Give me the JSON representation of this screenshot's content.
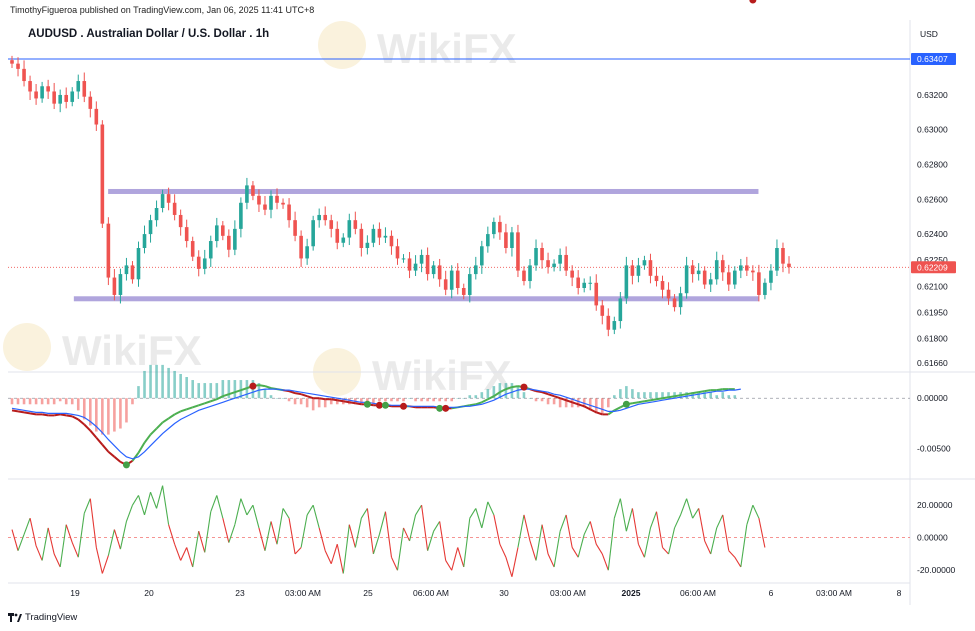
{
  "published": "TimothyFigueroa published on TradingView.com, Jan 06, 2025 11:41 UTC+8",
  "title": "AUDUSD . Australian Dollar / U.S. Dollar . 1h",
  "currency": "USD",
  "footer": {
    "brand": "TradingView",
    "logo_icon": "tradingview-logo-icon"
  },
  "watermark": "WikiFX",
  "colors": {
    "up": "#26a69a",
    "down": "#ef5350",
    "zone": "#a79bd9",
    "axis_text": "#131722",
    "hline": "#2962ff"
  },
  "chart_data": [
    {
      "type": "candlestick",
      "name": "price",
      "y_ticks": [
        0.632,
        0.63,
        0.628,
        0.626,
        0.624,
        0.6225,
        0.621,
        0.6195,
        0.618,
        0.6166
      ],
      "y_tick_labels": [
        "0.63200",
        "0.63000",
        "0.62800",
        "0.62600",
        "0.62400",
        "0.62250",
        "0.62100",
        "0.61950",
        "0.61800",
        "0.61660"
      ],
      "ylim": [
        0.6163,
        0.6347
      ],
      "horizontal_line": {
        "value": 0.63407,
        "label": "0.63407"
      },
      "last_price": {
        "value": 0.62209,
        "label": "0.62209"
      },
      "zones": [
        {
          "value": 0.62645,
          "x_start": 0.111,
          "x_end": 0.832
        },
        {
          "value": 0.62028,
          "x_start": 0.073,
          "x_end": 0.832
        }
      ],
      "x_ticks": [
        "19",
        "20",
        "23",
        "03:00 AM",
        "25",
        "06:00 AM",
        "30",
        "03:00 AM",
        "2025",
        "06:00 AM",
        "6",
        "03:00 AM",
        "8"
      ],
      "closes": [
        0.6338,
        0.6335,
        0.6328,
        0.6322,
        0.6318,
        0.6325,
        0.6322,
        0.6315,
        0.632,
        0.6316,
        0.6322,
        0.6328,
        0.6319,
        0.6312,
        0.6303,
        0.6246,
        0.6215,
        0.6205,
        0.6217,
        0.6222,
        0.6214,
        0.6232,
        0.624,
        0.6248,
        0.6255,
        0.6263,
        0.6258,
        0.6251,
        0.6244,
        0.6236,
        0.6227,
        0.622,
        0.6226,
        0.6236,
        0.6245,
        0.6239,
        0.6231,
        0.6243,
        0.6258,
        0.6268,
        0.6262,
        0.6257,
        0.6254,
        0.6262,
        0.6258,
        0.6257,
        0.6248,
        0.6239,
        0.6226,
        0.6233,
        0.6248,
        0.6251,
        0.6248,
        0.6243,
        0.6235,
        0.6238,
        0.6248,
        0.6243,
        0.6232,
        0.6235,
        0.6243,
        0.6238,
        0.6239,
        0.6233,
        0.6226,
        0.6226,
        0.6219,
        0.6223,
        0.6228,
        0.6217,
        0.6222,
        0.6214,
        0.6208,
        0.6219,
        0.6209,
        0.6205,
        0.6217,
        0.6222,
        0.6233,
        0.624,
        0.6247,
        0.6241,
        0.6232,
        0.6241,
        0.6219,
        0.6213,
        0.6222,
        0.6232,
        0.6225,
        0.6221,
        0.6223,
        0.6228,
        0.6219,
        0.6215,
        0.6209,
        0.6212,
        0.6212,
        0.6199,
        0.6193,
        0.6185,
        0.619,
        0.6203,
        0.6222,
        0.6216,
        0.6222,
        0.6225,
        0.6216,
        0.6213,
        0.6208,
        0.6203,
        0.6198,
        0.6206,
        0.6222,
        0.6217,
        0.6219,
        0.6211,
        0.6214,
        0.6225,
        0.6218,
        0.6211,
        0.6219,
        0.6222,
        0.6219,
        0.6218,
        0.6205,
        0.6212,
        0.6219,
        0.6232,
        0.6223,
        0.6221
      ]
    },
    {
      "type": "macd",
      "name": "macd",
      "y_ticks": [
        0.0,
        -0.005
      ],
      "y_tick_labels": [
        "0.00000",
        "-0.00500"
      ],
      "ylim": [
        -0.0077,
        0.0022
      ],
      "macd": [
        -0.0012,
        -0.0013,
        -0.0014,
        -0.0015,
        -0.0016,
        -0.0016,
        -0.0017,
        -0.0017,
        -0.0016,
        -0.0017,
        -0.0018,
        -0.0021,
        -0.0026,
        -0.0032,
        -0.0039,
        -0.0046,
        -0.0053,
        -0.0058,
        -0.0063,
        -0.0066,
        -0.0062,
        -0.0054,
        -0.0044,
        -0.0036,
        -0.003,
        -0.0024,
        -0.002,
        -0.0016,
        -0.0013,
        -0.0011,
        -0.0009,
        -0.0007,
        -0.0005,
        -0.0003,
        -0.0001,
        0.0002,
        0.0004,
        0.0006,
        0.0008,
        0.001,
        0.0012,
        0.0013,
        0.0012,
        0.001,
        0.0009,
        0.0008,
        0.0007,
        0.0005,
        0.0004,
        0.0002,
        0.0,
        0.0,
        -0.0001,
        -0.0001,
        -0.0002,
        -0.0003,
        -0.0004,
        -0.0005,
        -0.0006,
        -0.0006,
        -0.0007,
        -0.0007,
        -0.0007,
        -0.0008,
        -0.0008,
        -0.0008,
        -0.0008,
        -0.0009,
        -0.0009,
        -0.0009,
        -0.0009,
        -0.001,
        -0.001,
        -0.001,
        -0.0009,
        -0.0008,
        -0.0007,
        -0.0006,
        -0.0004,
        -0.0001,
        0.0002,
        0.0006,
        0.0009,
        0.0011,
        0.0012,
        0.0011,
        0.0009,
        0.0007,
        0.0006,
        0.0004,
        0.0002,
        0.0,
        -0.0002,
        -0.0004,
        -0.0006,
        -0.0008,
        -0.0011,
        -0.0014,
        -0.0016,
        -0.0016,
        -0.0012,
        -0.0009,
        -0.0006,
        -0.0005,
        -0.0004,
        -0.0003,
        -0.0002,
        -0.0001,
        0.0,
        0.0001,
        0.0002,
        0.0003,
        0.0004,
        0.0005,
        0.0006,
        0.0007,
        0.0008,
        0.0008,
        0.0009,
        0.0009,
        0.0009
      ],
      "signal": [
        -0.001,
        -0.0011,
        -0.0012,
        -0.0013,
        -0.0014,
        -0.0014,
        -0.0015,
        -0.0015,
        -0.0015,
        -0.0015,
        -0.0016,
        -0.0017,
        -0.0019,
        -0.0023,
        -0.0028,
        -0.0034,
        -0.0041,
        -0.0047,
        -0.0053,
        -0.0058,
        -0.006,
        -0.0058,
        -0.0053,
        -0.0047,
        -0.0041,
        -0.0035,
        -0.003,
        -0.0025,
        -0.0021,
        -0.0018,
        -0.0015,
        -0.0012,
        -0.001,
        -0.0008,
        -0.0006,
        -0.0004,
        -0.0002,
        0.0,
        0.0002,
        0.0004,
        0.0006,
        0.0008,
        0.0009,
        0.0009,
        0.0009,
        0.0008,
        0.0008,
        0.0007,
        0.0006,
        0.0005,
        0.0004,
        0.0003,
        0.0002,
        0.0001,
        0.0,
        -0.0001,
        -0.0002,
        -0.0003,
        -0.0004,
        -0.0004,
        -0.0005,
        -0.0006,
        -0.0006,
        -0.0007,
        -0.0007,
        -0.0007,
        -0.0008,
        -0.0008,
        -0.0008,
        -0.0008,
        -0.0008,
        -0.0009,
        -0.0009,
        -0.0009,
        -0.0009,
        -0.0008,
        -0.0008,
        -0.0007,
        -0.0006,
        -0.0004,
        -0.0002,
        0.0001,
        0.0004,
        0.0006,
        0.0008,
        0.0009,
        0.0009,
        0.0008,
        0.0007,
        0.0006,
        0.0004,
        0.0003,
        0.0001,
        -0.0001,
        -0.0003,
        -0.0005,
        -0.0007,
        -0.0009,
        -0.0011,
        -0.0013,
        -0.0013,
        -0.0012,
        -0.001,
        -0.0008,
        -0.0006,
        -0.0005,
        -0.0004,
        -0.0003,
        -0.0002,
        -0.0001,
        0.0,
        0.0001,
        0.0002,
        0.0003,
        0.0004,
        0.0005,
        0.0006,
        0.0007,
        0.0007,
        0.0008,
        0.0008,
        0.0009
      ],
      "cross_points": [
        {
          "index": 19,
          "color": "#43a047"
        },
        {
          "index": 40,
          "color": "#b71c1c"
        },
        {
          "index": 59,
          "color": "#43a047"
        },
        {
          "index": 61,
          "color": "#b71c1c"
        },
        {
          "index": 62,
          "color": "#43a047"
        },
        {
          "index": 65,
          "color": "#b71c1c"
        },
        {
          "index": 71,
          "color": "#43a047"
        },
        {
          "index": 72,
          "color": "#b71c1c"
        },
        {
          "index": 85,
          "color": "#b71c1c"
        },
        {
          "index": 102,
          "color": "#43a047"
        },
        {
          "index": 123,
          "color": "#b71c1c"
        }
      ]
    },
    {
      "type": "line",
      "name": "oscillator",
      "y_ticks": [
        20,
        0,
        -20
      ],
      "y_tick_labels": [
        "20.00000",
        "0.00000",
        "-20.00000"
      ],
      "ylim": [
        -26,
        33
      ],
      "values": [
        5,
        -8,
        2,
        12,
        -5,
        -14,
        6,
        -10,
        -18,
        8,
        -3,
        -12,
        15,
        24,
        -6,
        -22,
        -11,
        5,
        -7,
        10,
        20,
        26,
        14,
        28,
        18,
        32,
        8,
        -4,
        -14,
        -6,
        -18,
        4,
        -9,
        16,
        26,
        12,
        -3,
        8,
        24,
        14,
        20,
        6,
        -8,
        10,
        -4,
        18,
        12,
        -10,
        -6,
        14,
        20,
        6,
        -8,
        -16,
        -4,
        -22,
        8,
        -6,
        12,
        18,
        -10,
        2,
        16,
        -12,
        -20,
        6,
        -2,
        14,
        20,
        -8,
        4,
        10,
        -14,
        -20,
        -6,
        -18,
        12,
        18,
        6,
        22,
        14,
        -4,
        -12,
        -24,
        -6,
        14,
        -2,
        -14,
        8,
        -10,
        -18,
        4,
        14,
        -6,
        -12,
        2,
        10,
        -4,
        -10,
        -20,
        12,
        24,
        4,
        18,
        -4,
        -12,
        6,
        16,
        -6,
        -10,
        6,
        14,
        24,
        12,
        18,
        -2,
        -10,
        6,
        14,
        -8,
        -12,
        -18,
        8,
        20,
        12,
        -6
      ]
    }
  ]
}
